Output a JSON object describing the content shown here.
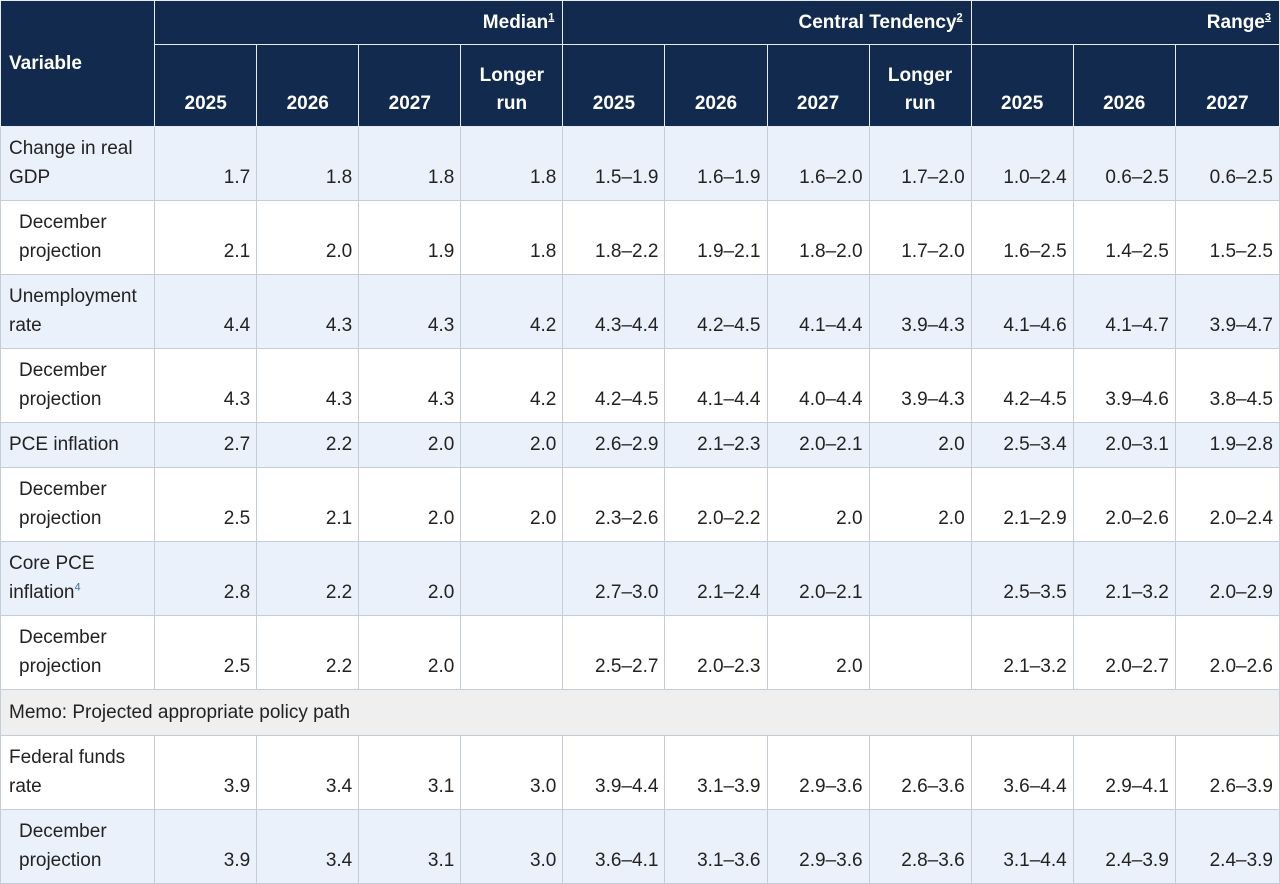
{
  "header": {
    "variable_label": "Variable",
    "groups": [
      {
        "label": "Median",
        "note": "1"
      },
      {
        "label": "Central Tendency",
        "note": "2"
      },
      {
        "label": "Range",
        "note": "3"
      }
    ],
    "columns": [
      "2025",
      "2026",
      "2027",
      "Longer run",
      "2025",
      "2026",
      "2027",
      "Longer run",
      "2025",
      "2026",
      "2027"
    ]
  },
  "rows": [
    {
      "label": "Change in real GDP",
      "style": "shade",
      "cells": [
        "1.7",
        "1.8",
        "1.8",
        "1.8",
        "1.5–1.9",
        "1.6–1.9",
        "1.6–2.0",
        "1.7–2.0",
        "1.0–2.4",
        "0.6–2.5",
        "0.6–2.5"
      ]
    },
    {
      "label": "December projection",
      "style": "plain",
      "cells": [
        "2.1",
        "2.0",
        "1.9",
        "1.8",
        "1.8–2.2",
        "1.9–2.1",
        "1.8–2.0",
        "1.7–2.0",
        "1.6–2.5",
        "1.4–2.5",
        "1.5–2.5"
      ]
    },
    {
      "label": "Unemployment rate",
      "style": "shade",
      "cells": [
        "4.4",
        "4.3",
        "4.3",
        "4.2",
        "4.3–4.4",
        "4.2–4.5",
        "4.1–4.4",
        "3.9–4.3",
        "4.1–4.6",
        "4.1–4.7",
        "3.9–4.7"
      ]
    },
    {
      "label": "December projection",
      "style": "plain",
      "cells": [
        "4.3",
        "4.3",
        "4.3",
        "4.2",
        "4.2–4.5",
        "4.1–4.4",
        "4.0–4.4",
        "3.9–4.3",
        "4.2–4.5",
        "3.9–4.6",
        "3.8–4.5"
      ]
    },
    {
      "label": "PCE inflation",
      "style": "shade",
      "cells": [
        "2.7",
        "2.2",
        "2.0",
        "2.0",
        "2.6–2.9",
        "2.1–2.3",
        "2.0–2.1",
        "2.0",
        "2.5–3.4",
        "2.0–3.1",
        "1.9–2.8"
      ]
    },
    {
      "label": "December projection",
      "style": "plain",
      "cells": [
        "2.5",
        "2.1",
        "2.0",
        "2.0",
        "2.3–2.6",
        "2.0–2.2",
        "2.0",
        "2.0",
        "2.1–2.9",
        "2.0–2.6",
        "2.0–2.4"
      ]
    },
    {
      "label": "Core PCE inflation",
      "note": "4",
      "style": "shade",
      "cells": [
        "2.8",
        "2.2",
        "2.0",
        "",
        "2.7–3.0",
        "2.1–2.4",
        "2.0–2.1",
        "",
        "2.5–3.5",
        "2.1–3.2",
        "2.0–2.9"
      ]
    },
    {
      "label": "December projection",
      "style": "plain",
      "cells": [
        "2.5",
        "2.2",
        "2.0",
        "",
        "2.5–2.7",
        "2.0–2.3",
        "2.0",
        "",
        "2.1–3.2",
        "2.0–2.7",
        "2.0–2.6"
      ]
    }
  ],
  "memo": "Memo: Projected appropriate policy path",
  "policy_rows": [
    {
      "label": "Federal funds rate",
      "style": "plain",
      "cells": [
        "3.9",
        "3.4",
        "3.1",
        "3.0",
        "3.9–4.4",
        "3.1–3.9",
        "2.9–3.6",
        "2.6–3.6",
        "3.6–4.4",
        "2.9–4.1",
        "2.6–3.9"
      ]
    },
    {
      "label": "December projection",
      "style": "shade",
      "cells": [
        "3.9",
        "3.4",
        "3.1",
        "3.0",
        "3.6–4.1",
        "3.1–3.6",
        "2.9–3.6",
        "2.8–3.6",
        "3.1–4.4",
        "2.4–3.9",
        "2.4–3.9"
      ]
    }
  ]
}
